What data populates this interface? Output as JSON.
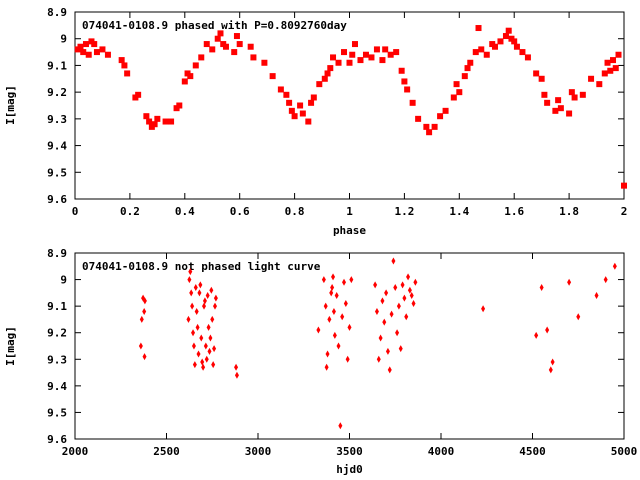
{
  "chart_data": [
    {
      "type": "scatter",
      "title": "074041-0108.9 phased with P=0.8092760day",
      "xlabel": "phase",
      "ylabel": "I[mag]",
      "xlim": [
        0,
        2
      ],
      "ylim": [
        9.6,
        8.9
      ],
      "y_inverted": true,
      "xticks": [
        "0",
        "0.2",
        "0.4",
        "0.6",
        "0.8",
        "1",
        "1.2",
        "1.4",
        "1.6",
        "1.8",
        "2"
      ],
      "yticks": [
        "8.9",
        "9",
        "9.1",
        "9.2",
        "9.3",
        "9.4",
        "9.5",
        "9.6"
      ],
      "marker": "filled-square",
      "color": "#ff0000",
      "grid": false,
      "series": [
        {
          "x": [
            0.01,
            0.02,
            0.03,
            0.04,
            0.05,
            0.06,
            0.07,
            0.08,
            0.1,
            0.12,
            0.17,
            0.18,
            0.19,
            0.22,
            0.23,
            0.26,
            0.27,
            0.28,
            0.29,
            0.3,
            0.33,
            0.35,
            0.37,
            0.38,
            0.4,
            0.41,
            0.42,
            0.44,
            0.46,
            0.48,
            0.5,
            0.52,
            0.53,
            0.54,
            0.55,
            0.58,
            0.59,
            0.6,
            0.64,
            0.65,
            0.69,
            0.72,
            0.75,
            0.77,
            0.78,
            0.79,
            0.8,
            0.82,
            0.83,
            0.85,
            0.86,
            0.87,
            0.89,
            0.91,
            0.92,
            0.93,
            0.94,
            0.96,
            0.98,
            1.0,
            1.01,
            1.02,
            1.04,
            1.06,
            1.08,
            1.1,
            1.12,
            1.13,
            1.15,
            1.17,
            1.19,
            1.2,
            1.21,
            1.23,
            1.25,
            1.28,
            1.29,
            1.31,
            1.33,
            1.35,
            1.38,
            1.39,
            1.4,
            1.42,
            1.43,
            1.44,
            1.46,
            1.47,
            1.48,
            1.5,
            1.52,
            1.53,
            1.55,
            1.57,
            1.58,
            1.59,
            1.6,
            1.61,
            1.63,
            1.65,
            1.68,
            1.7,
            1.71,
            1.72,
            1.75,
            1.76,
            1.77,
            1.8,
            1.81,
            1.82,
            1.85,
            1.88,
            1.91,
            1.93,
            1.94,
            1.95,
            1.96,
            1.97,
            1.98,
            2.0
          ],
          "y": [
            9.04,
            9.03,
            9.05,
            9.02,
            9.06,
            9.01,
            9.02,
            9.05,
            9.04,
            9.06,
            9.08,
            9.1,
            9.13,
            9.22,
            9.21,
            9.29,
            9.31,
            9.33,
            9.32,
            9.3,
            9.31,
            9.31,
            9.26,
            9.25,
            9.16,
            9.13,
            9.14,
            9.1,
            9.07,
            9.02,
            9.04,
            9.0,
            8.98,
            9.02,
            9.03,
            9.05,
            8.99,
            9.02,
            9.03,
            9.07,
            9.09,
            9.14,
            9.19,
            9.21,
            9.24,
            9.27,
            9.29,
            9.25,
            9.28,
            9.31,
            9.24,
            9.22,
            9.17,
            9.15,
            9.13,
            9.11,
            9.07,
            9.09,
            9.05,
            9.09,
            9.06,
            9.02,
            9.08,
            9.06,
            9.07,
            9.04,
            9.08,
            9.04,
            9.06,
            9.05,
            9.12,
            9.16,
            9.19,
            9.24,
            9.3,
            9.33,
            9.35,
            9.33,
            9.29,
            9.27,
            9.22,
            9.17,
            9.2,
            9.14,
            9.11,
            9.09,
            9.05,
            8.96,
            9.04,
            9.06,
            9.02,
            9.03,
            9.01,
            8.99,
            8.97,
            9.0,
            9.01,
            9.03,
            9.05,
            9.07,
            9.13,
            9.15,
            9.21,
            9.24,
            9.27,
            9.23,
            9.26,
            9.28,
            9.2,
            9.22,
            9.21,
            9.15,
            9.17,
            9.13,
            9.09,
            9.12,
            9.08,
            9.11,
            9.06,
            9.55
          ]
        }
      ]
    },
    {
      "type": "scatter",
      "title": "074041-0108.9 not phased light curve",
      "xlabel": "hjd0",
      "ylabel": "I[mag]",
      "xlim": [
        2000,
        5000
      ],
      "ylim": [
        9.6,
        8.9
      ],
      "y_inverted": true,
      "xticks": [
        "2000",
        "2500",
        "3000",
        "3500",
        "4000",
        "4500",
        "5000"
      ],
      "yticks": [
        "8.9",
        "9",
        "9.1",
        "9.2",
        "9.3",
        "9.4",
        "9.5",
        "9.6"
      ],
      "marker": "filled-diamond",
      "color": "#ff0000",
      "grid": false,
      "series": [
        {
          "x": [
            2360,
            2365,
            2372,
            2378,
            2380,
            2382,
            2620,
            2625,
            2630,
            2635,
            2640,
            2645,
            2650,
            2655,
            2660,
            2665,
            2670,
            2675,
            2680,
            2685,
            2690,
            2695,
            2700,
            2705,
            2710,
            2715,
            2720,
            2725,
            2730,
            2735,
            2740,
            2745,
            2750,
            2755,
            2760,
            2765,
            2770,
            2880,
            2885,
            3330,
            3360,
            3370,
            3375,
            3380,
            3390,
            3400,
            3405,
            3410,
            3415,
            3420,
            3430,
            3440,
            3450,
            3460,
            3470,
            3480,
            3490,
            3500,
            3510,
            3640,
            3650,
            3660,
            3670,
            3680,
            3690,
            3700,
            3710,
            3720,
            3730,
            3740,
            3750,
            3760,
            3770,
            3780,
            3790,
            3800,
            3810,
            3820,
            3830,
            3840,
            3850,
            3860,
            4230,
            4520,
            4550,
            4580,
            4600,
            4610,
            4700,
            4750,
            4850,
            4900,
            4950
          ],
          "y": [
            9.25,
            9.15,
            9.07,
            9.12,
            9.29,
            9.08,
            9.15,
            9.0,
            8.97,
            9.05,
            9.1,
            9.2,
            9.25,
            9.32,
            9.03,
            9.12,
            9.18,
            9.28,
            9.05,
            9.02,
            9.22,
            9.31,
            9.33,
            9.1,
            9.08,
            9.25,
            9.3,
            9.06,
            9.18,
            9.27,
            9.22,
            9.04,
            9.15,
            9.32,
            9.26,
            9.1,
            9.07,
            9.33,
            9.36,
            9.19,
            9.0,
            9.1,
            9.33,
            9.28,
            9.15,
            9.05,
            9.03,
            8.99,
            9.12,
            9.21,
            9.06,
            9.25,
            9.55,
            9.14,
            9.01,
            9.09,
            9.3,
            9.18,
            9.0,
            9.02,
            9.12,
            9.3,
            9.22,
            9.08,
            9.16,
            9.05,
            9.27,
            9.34,
            9.13,
            8.93,
            9.03,
            9.2,
            9.1,
            9.26,
            9.02,
            9.07,
            9.14,
            8.99,
            9.04,
            9.06,
            9.09,
            9.01,
            9.11,
            9.21,
            9.03,
            9.19,
            9.34,
            9.31,
            9.01,
            9.14,
            9.06,
            9.0,
            8.95
          ]
        }
      ]
    }
  ]
}
